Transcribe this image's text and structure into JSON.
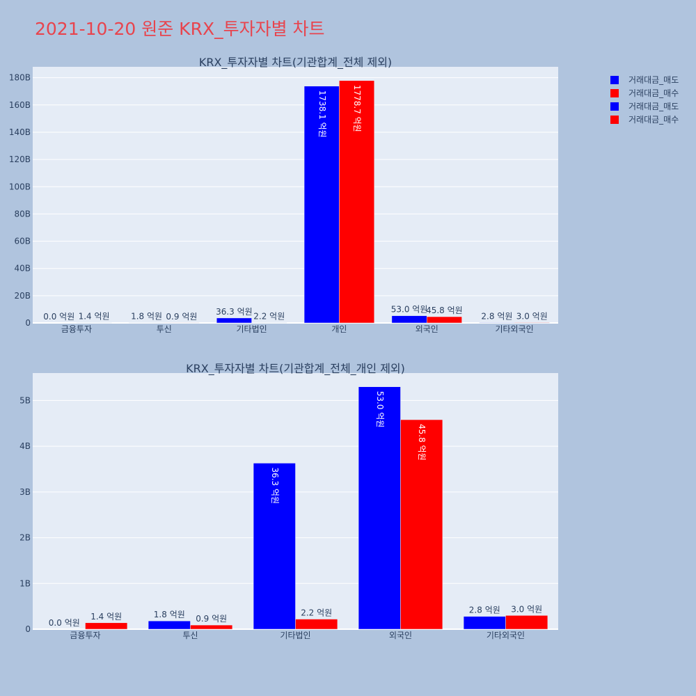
{
  "page_title": "2021-10-20 원준 KRX_투자자별 차트",
  "colors": {
    "background": "#b0c4de",
    "plot_background": "#e5ecf6",
    "title": "#e8444d",
    "sell": "#0000ff",
    "buy": "#ff0000",
    "text": "#2a3f5f"
  },
  "legend": [
    {
      "name": "거래대금_매도",
      "color": "#0000ff"
    },
    {
      "name": "거래대금_매수",
      "color": "#ff0000"
    },
    {
      "name": "거래대금_매도",
      "color": "#0000ff"
    },
    {
      "name": "거래대금_매수",
      "color": "#ff0000"
    }
  ],
  "chart_data": [
    {
      "type": "bar",
      "title": "KRX_투자자별 차트(기관합계_전체 제외)",
      "categories": [
        "금융투자",
        "투신",
        "기타법인",
        "개인",
        "외국인",
        "기타외국인"
      ],
      "series": [
        {
          "name": "거래대금_매도",
          "color": "#0000ff",
          "values": [
            0.0,
            0.18,
            3.63,
            173.81,
            5.3,
            0.28
          ],
          "labels": [
            "0.0 억원",
            "1.8 억원",
            "36.3 억원",
            "1738.1 억원",
            "53.0 억원",
            "2.8 억원"
          ]
        },
        {
          "name": "거래대금_매수",
          "color": "#ff0000",
          "values": [
            0.14,
            0.09,
            0.22,
            177.87,
            4.58,
            0.3
          ],
          "labels": [
            "1.4 억원",
            "0.9 억원",
            "2.2 억원",
            "1778.7 억원",
            "45.8 억원",
            "3.0 억원"
          ]
        }
      ],
      "ylim": [
        0,
        188
      ],
      "yticks": [
        0,
        20,
        40,
        60,
        80,
        100,
        120,
        140,
        160,
        180
      ],
      "ytick_labels": [
        "0",
        "20B",
        "40B",
        "60B",
        "80B",
        "100B",
        "120B",
        "140B",
        "160B",
        "180B"
      ],
      "grid": true,
      "legend_position": "top-right"
    },
    {
      "type": "bar",
      "title": "KRX_투자자별 차트(기관합계_전체_개인 제외)",
      "categories": [
        "금융투자",
        "투신",
        "기타법인",
        "외국인",
        "기타외국인"
      ],
      "series": [
        {
          "name": "거래대금_매도",
          "color": "#0000ff",
          "values": [
            0.0,
            0.18,
            3.63,
            5.3,
            0.28
          ],
          "labels": [
            "0.0 억원",
            "1.8 억원",
            "36.3 억원",
            "53.0 억원",
            "2.8 억원"
          ]
        },
        {
          "name": "거래대금_매수",
          "color": "#ff0000",
          "values": [
            0.14,
            0.09,
            0.22,
            4.58,
            0.3
          ],
          "labels": [
            "1.4 억원",
            "0.9 억원",
            "2.2 억원",
            "45.8 억원",
            "3.0 억원"
          ]
        }
      ],
      "ylim": [
        0,
        5.6
      ],
      "yticks": [
        0,
        1,
        2,
        3,
        4,
        5
      ],
      "ytick_labels": [
        "0",
        "1B",
        "2B",
        "3B",
        "4B",
        "5B"
      ],
      "grid": true
    }
  ]
}
